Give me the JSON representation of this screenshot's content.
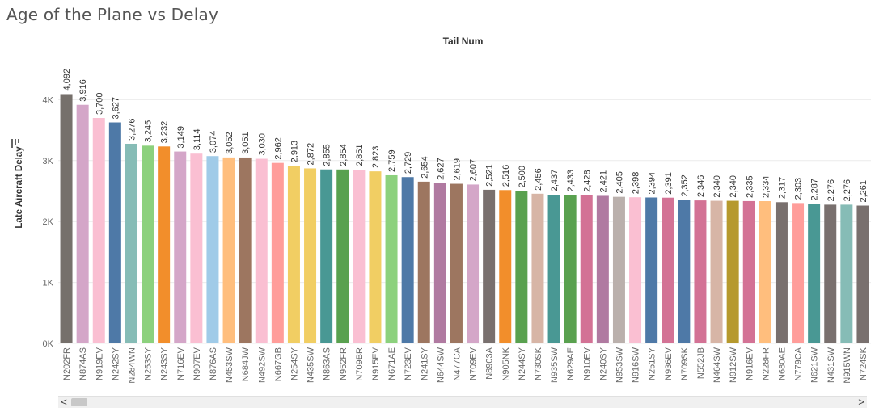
{
  "title": "Age of the Plane vs Delay",
  "scrollbar": {
    "left_arrow": "<",
    "right_arrow": ">"
  },
  "chart_data": {
    "type": "bar",
    "header_label": "Tail Num",
    "ylabel": "Late Aircraft Delay",
    "ylabel_icon": "sort-icon",
    "ylim": [
      0,
      4400
    ],
    "y_ticks": [
      {
        "value": 0,
        "label": "0K"
      },
      {
        "value": 1000,
        "label": "1K"
      },
      {
        "value": 2000,
        "label": "2K"
      },
      {
        "value": 3000,
        "label": "3K"
      },
      {
        "value": 4000,
        "label": "4K"
      }
    ],
    "grid": true,
    "categories": [
      "N202FR",
      "N874AS",
      "N919EV",
      "N242SY",
      "N284WN",
      "N253SY",
      "N243SY",
      "N716EV",
      "N907EV",
      "N876AS",
      "N453SW",
      "N684JW",
      "N492SW",
      "N667GB",
      "N254SY",
      "N435SW",
      "N863AS",
      "N952FR",
      "N709BR",
      "N915EV",
      "N671AE",
      "N723EV",
      "N241SY",
      "N644SW",
      "N477CA",
      "N709EV",
      "N8903A",
      "N905NK",
      "N244SY",
      "N730SK",
      "N935SW",
      "N629AE",
      "N910EV",
      "N240SY",
      "N953SW",
      "N916SW",
      "N251SY",
      "N936EV",
      "N709SK",
      "N552JB",
      "N464SW",
      "N912SW",
      "N916EV",
      "N228FR",
      "N680AE",
      "N779CA",
      "N621SW",
      "N431SW",
      "N915WN",
      "N724SK"
    ],
    "values": [
      4092,
      3916,
      3700,
      3627,
      3276,
      3245,
      3232,
      3149,
      3114,
      3074,
      3052,
      3051,
      3030,
      2962,
      2913,
      2872,
      2855,
      2854,
      2851,
      2823,
      2759,
      2729,
      2654,
      2627,
      2619,
      2607,
      2521,
      2516,
      2500,
      2456,
      2437,
      2433,
      2428,
      2421,
      2405,
      2398,
      2394,
      2391,
      2352,
      2346,
      2340,
      2340,
      2335,
      2334,
      2317,
      2303,
      2287,
      2276,
      2276,
      2261
    ],
    "value_labels": [
      "4,092",
      "3,916",
      "3,700",
      "3,627",
      "3,276",
      "3,245",
      "3,232",
      "3,149",
      "3,114",
      "3,074",
      "3,052",
      "3,051",
      "3,030",
      "2,962",
      "2,913",
      "2,872",
      "2,855",
      "2,854",
      "2,851",
      "2,823",
      "2,759",
      "2,729",
      "2,654",
      "2,627",
      "2,619",
      "2,607",
      "2,521",
      "2,516",
      "2,500",
      "2,456",
      "2,437",
      "2,433",
      "2,428",
      "2,421",
      "2,405",
      "2,398",
      "2,394",
      "2,391",
      "2,352",
      "2,346",
      "2,340",
      "2,340",
      "2,335",
      "2,334",
      "2,317",
      "2,303",
      "2,287",
      "2,276",
      "2,276",
      "2,261"
    ],
    "colors": [
      "#76706b",
      "#d4a6c8",
      "#fabfd2",
      "#4e79a7",
      "#86bcb6",
      "#8cd17d",
      "#f28e2b",
      "#d4a6c8",
      "#fabfd2",
      "#a0cbe8",
      "#ffbe7d",
      "#9d7660",
      "#fabfd2",
      "#ff9d9a",
      "#f1ce63",
      "#f1ce63",
      "#499894",
      "#59a14f",
      "#fabfd2",
      "#f1ce63",
      "#8cd17d",
      "#4e79a7",
      "#9d7660",
      "#b07aa1",
      "#9d7660",
      "#d4a6c8",
      "#79706e",
      "#f28e2b",
      "#59a14f",
      "#d7b5a6",
      "#499894",
      "#59a14f",
      "#d37295",
      "#b07aa1",
      "#bab0ac",
      "#fabfd2",
      "#4e79a7",
      "#d37295",
      "#4e79a7",
      "#d37295",
      "#d7b5a6",
      "#b6992d",
      "#d37295",
      "#ffbe7d",
      "#79706e",
      "#ff9d9a",
      "#499894",
      "#79706e",
      "#86bcb6",
      "#79706e"
    ]
  }
}
